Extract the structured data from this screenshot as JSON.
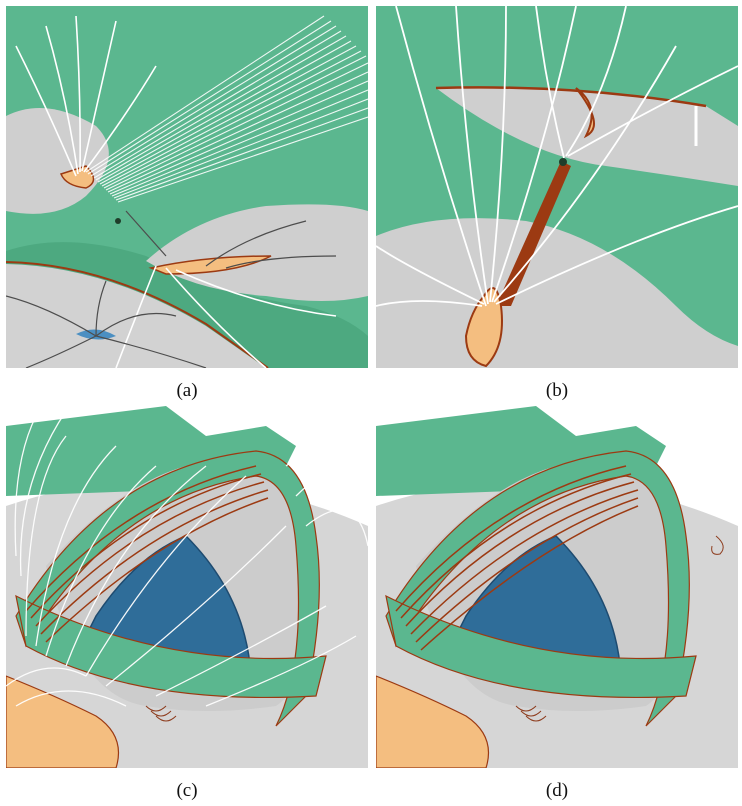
{
  "figure": {
    "panels": [
      {
        "id": "a",
        "caption": "(a)"
      },
      {
        "id": "b",
        "caption": "(b)"
      },
      {
        "id": "c",
        "caption": "(c)"
      },
      {
        "id": "d",
        "caption": "(d)"
      }
    ],
    "colors": {
      "separatrix_surface": "#5bb78f",
      "photosphere": "#cfcfcf",
      "null_region": "#f4be80",
      "contour": "#9c3a12",
      "field_line": "#ffffff",
      "dome": "#2f6d99"
    }
  }
}
